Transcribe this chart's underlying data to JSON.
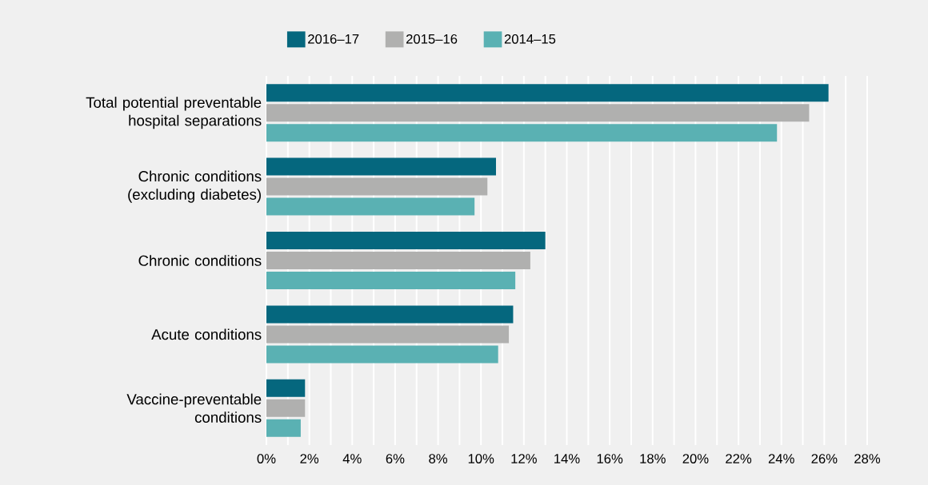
{
  "chart_data": {
    "type": "bar",
    "orientation": "horizontal",
    "categories": [
      "Total potential preventable hospital separations",
      "Chronic conditions (excluding diabetes)",
      "Chronic conditions",
      "Acute conditions",
      "Vaccine-preventable conditions"
    ],
    "series": [
      {
        "name": "2016–17",
        "color": "#05677e",
        "values": [
          26.2,
          10.7,
          13.0,
          11.5,
          1.8
        ]
      },
      {
        "name": "2015–16",
        "color": "#b0b0af",
        "values": [
          25.3,
          10.3,
          12.3,
          11.3,
          1.8
        ]
      },
      {
        "name": "2014–15",
        "color": "#5ab1b3",
        "values": [
          23.8,
          9.7,
          11.6,
          10.8,
          1.6
        ]
      }
    ],
    "xlim": [
      0,
      28
    ],
    "xticks": [
      {
        "value": 0,
        "label": "0%"
      },
      {
        "value": 1,
        "label": null
      },
      {
        "value": 2,
        "label": "2%"
      },
      {
        "value": 3,
        "label": null
      },
      {
        "value": 4,
        "label": "4%"
      },
      {
        "value": 5,
        "label": null
      },
      {
        "value": 6,
        "label": "6%"
      },
      {
        "value": 7,
        "label": null
      },
      {
        "value": 8,
        "label": "8%"
      },
      {
        "value": 9,
        "label": null
      },
      {
        "value": 10,
        "label": "10%"
      },
      {
        "value": 11,
        "label": null
      },
      {
        "value": 12,
        "label": "12%"
      },
      {
        "value": 13,
        "label": null
      },
      {
        "value": 14,
        "label": "14%"
      },
      {
        "value": 15,
        "label": null
      },
      {
        "value": 16,
        "label": "16%"
      },
      {
        "value": 17,
        "label": null
      },
      {
        "value": 18,
        "label": "18%"
      },
      {
        "value": 19,
        "label": null
      },
      {
        "value": 20,
        "label": "20%"
      },
      {
        "value": 21,
        "label": null
      },
      {
        "value": 22,
        "label": "22%"
      },
      {
        "value": 23,
        "label": null
      },
      {
        "value": 24,
        "label": "24%"
      },
      {
        "value": 25,
        "label": null
      },
      {
        "value": 26,
        "label": "26%"
      },
      {
        "value": 27,
        "label": null
      },
      {
        "value": 28,
        "label": "28%"
      }
    ],
    "grid": "x",
    "legend": "top"
  }
}
